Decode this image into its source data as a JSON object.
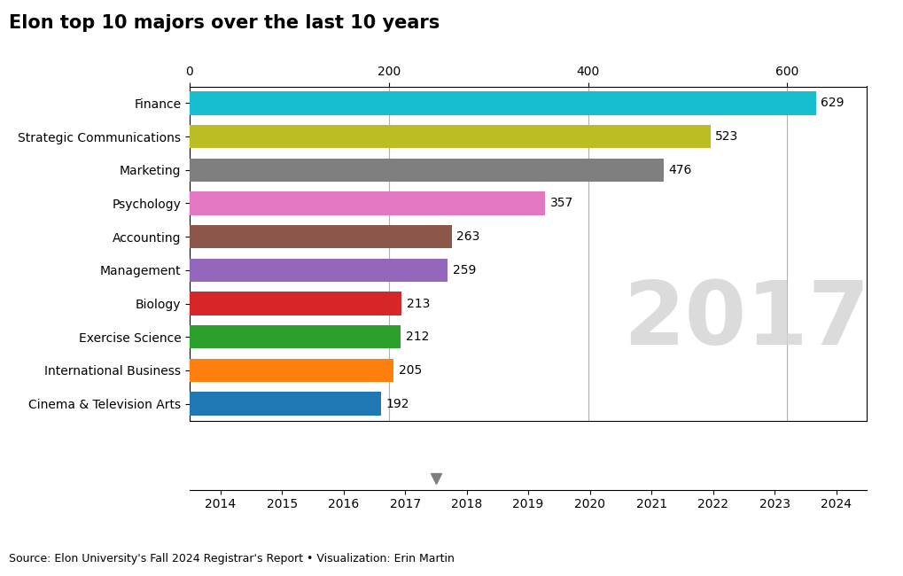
{
  "chart_data": [
    {
      "type": "bar",
      "orientation": "horizontal",
      "title": "Elon top 10 majors over the last 10 years",
      "categories": [
        "Cinema & Television Arts",
        "International Business",
        "Exercise Science",
        "Biology",
        "Management",
        "Accounting",
        "Psychology",
        "Marketing",
        "Strategic Communications",
        "Finance"
      ],
      "values": [
        192,
        205,
        212,
        213,
        259,
        263,
        357,
        476,
        523,
        629
      ],
      "xlim": [
        0,
        680
      ],
      "xticks": [
        0,
        200,
        400,
        600
      ],
      "grid": true,
      "data_labels": true,
      "annotations": [
        "2017",
        "Source: Elon University's Fall 2024 Registrar's Report • Visualization: Erin Martin"
      ]
    },
    {
      "type": "scatter",
      "x": [
        2017.5
      ],
      "marker": "triangle_down",
      "xlim": [
        2013.5,
        2024.5
      ],
      "xticks": [
        2014,
        2015,
        2016,
        2017,
        2018,
        2019,
        2020,
        2021,
        2022,
        2023,
        2024
      ],
      "tick_labels": "x"
    }
  ]
}
